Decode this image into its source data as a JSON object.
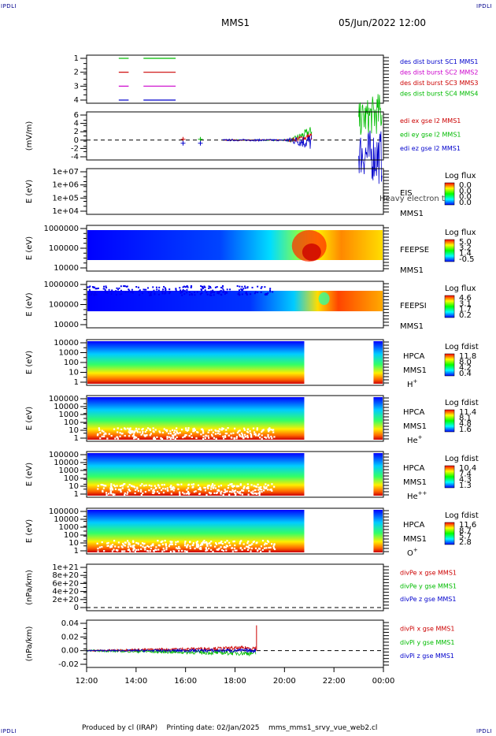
{
  "page": {
    "corner_label": "IPDLI",
    "title": "MMS1",
    "datetime": "05/Jun/2022 12:00",
    "footer": "Produced by cl (IRAP)    Printing date: 02/Jan/2025    mms_mms1_srvy_vue_web2.cl"
  },
  "chart_data": [
    {
      "type": "line",
      "id": "des_dist",
      "ylim": [
        0.5,
        4.5
      ],
      "yticks": [
        "1",
        "2",
        "3",
        "4"
      ],
      "legend": [
        {
          "text": "des dist burst SC1 MMS1",
          "color": "#0000cc"
        },
        {
          "text": "des dist burst SC2 MMS2",
          "color": "#cc00cc"
        },
        {
          "text": "des dist burst SC3 MMS3",
          "color": "#cc0000"
        },
        {
          "text": "des dist burst SC4 MMS4",
          "color": "#00bb00"
        }
      ],
      "series": [
        {
          "y": 4,
          "color": "#00bb00",
          "segments": [
            [
              13.3,
              13.7
            ],
            [
              14.3,
              15.6
            ]
          ]
        },
        {
          "y": 3,
          "color": "#cc0000",
          "segments": [
            [
              13.3,
              13.7
            ],
            [
              14.3,
              15.6
            ]
          ]
        },
        {
          "y": 2,
          "color": "#cc00cc",
          "segments": [
            [
              13.3,
              13.7
            ],
            [
              14.3,
              15.6
            ]
          ]
        },
        {
          "y": 1,
          "color": "#0000cc",
          "segments": [
            [
              13.3,
              13.7
            ],
            [
              14.3,
              15.6
            ]
          ]
        }
      ]
    },
    {
      "type": "line",
      "id": "edi_e",
      "ylabel": "(mV/m)",
      "ylim": [
        -5,
        7
      ],
      "yticks": [
        "6",
        "4",
        "2",
        "0",
        "-2",
        "-4"
      ],
      "legend": [
        {
          "text": "edi ex gse l2 MMS1",
          "color": "#cc0000"
        },
        {
          "text": "edi ey gse l2 MMS1",
          "color": "#00bb00"
        },
        {
          "text": "edi ez gse l2 MMS1",
          "color": "#0000cc"
        }
      ]
    },
    {
      "type": "heatmap",
      "id": "eis",
      "ylabel": "E (eV)",
      "yticks": [
        "1e+07",
        "1e+06",
        "1e+05",
        "1e+04"
      ],
      "labels": [
        "EIS",
        "MMS1"
      ],
      "overlay_text": "Heavy electron to",
      "colorbar_title": "Log flux",
      "colorbar_ticks": [
        "0.0",
        "0.0",
        "0.0",
        "0.0"
      ]
    },
    {
      "type": "heatmap",
      "id": "feepse",
      "ylabel": "E (eV)",
      "yticks": [
        "1000000",
        "100000",
        "10000"
      ],
      "labels": [
        "FEEPSE",
        "MMS1"
      ],
      "colorbar_title": "Log flux",
      "colorbar_ticks": [
        "5.0",
        "3.2",
        "1.4",
        "-0.5"
      ]
    },
    {
      "type": "heatmap",
      "id": "feepsi",
      "ylabel": "E (eV)",
      "yticks": [
        "1000000",
        "100000",
        "10000"
      ],
      "labels": [
        "FEEPSI",
        "MMS1"
      ],
      "colorbar_title": "Log flux",
      "colorbar_ticks": [
        "4.6",
        "3.1",
        "1.7",
        "0.2"
      ]
    },
    {
      "type": "heatmap",
      "id": "hpca_h",
      "ylabel": "E (eV)",
      "yticks": [
        "10000",
        "1000",
        "100",
        "10",
        "1"
      ],
      "labels": [
        "HPCA",
        "MMS1"
      ],
      "species": "H",
      "species_charge": "+",
      "colorbar_title": "Log fdist",
      "colorbar_ticks": [
        "11.8",
        "8.0",
        "4.2",
        "0.4"
      ]
    },
    {
      "type": "heatmap",
      "id": "hpca_he",
      "ylabel": "E (eV)",
      "yticks": [
        "100000",
        "10000",
        "1000",
        "100",
        "10",
        "1"
      ],
      "labels": [
        "HPCA",
        "MMS1"
      ],
      "species": "He",
      "species_charge": "+",
      "colorbar_title": "Log fdist",
      "colorbar_ticks": [
        "11.4",
        "8.1",
        "4.8",
        "1.6"
      ]
    },
    {
      "type": "heatmap",
      "id": "hpca_hepp",
      "ylabel": "E (eV)",
      "yticks": [
        "100000",
        "10000",
        "1000",
        "100",
        "10",
        "1"
      ],
      "labels": [
        "HPCA",
        "MMS1"
      ],
      "species": "He",
      "species_charge": "++",
      "colorbar_title": "Log fdist",
      "colorbar_ticks": [
        "10.4",
        "7.4",
        "4.3",
        "1.3"
      ]
    },
    {
      "type": "heatmap",
      "id": "hpca_o",
      "ylabel": "E (eV)",
      "yticks": [
        "100000",
        "10000",
        "1000",
        "100",
        "10",
        "1"
      ],
      "labels": [
        "HPCA",
        "MMS1"
      ],
      "species": "O",
      "species_charge": "+",
      "colorbar_title": "Log fdist",
      "colorbar_ticks": [
        "11.6",
        "8.7",
        "5.7",
        "2.8"
      ]
    },
    {
      "type": "line",
      "id": "divpe",
      "ylabel": "(nPa/km)",
      "ylim": [
        -1e+19,
        1.2e+21
      ],
      "yticks": [
        "1e+21",
        "8e+20",
        "6e+20",
        "4e+20",
        "2e+20",
        "0"
      ],
      "legend": [
        {
          "text": "divPe x gse MMS1",
          "color": "#cc0000"
        },
        {
          "text": "divPe y gse MMS1",
          "color": "#00bb00"
        },
        {
          "text": "divPe z gse MMS1",
          "color": "#0000cc"
        }
      ]
    },
    {
      "type": "line",
      "id": "divpi",
      "ylabel": "(nPa/km)",
      "ylim": [
        -0.025,
        0.05
      ],
      "yticks": [
        "0.04",
        "0.02",
        "0.00",
        "-0.02"
      ],
      "legend": [
        {
          "text": "divPi x gse MMS1",
          "color": "#cc0000"
        },
        {
          "text": "divPi y gse MMS1",
          "color": "#00bb00"
        },
        {
          "text": "divPi z gse MMS1",
          "color": "#0000cc"
        }
      ]
    }
  ],
  "x_axis": {
    "ticks": [
      "12:00",
      "14:00",
      "16:00",
      "18:00",
      "20:00",
      "22:00",
      "00:00"
    ]
  }
}
